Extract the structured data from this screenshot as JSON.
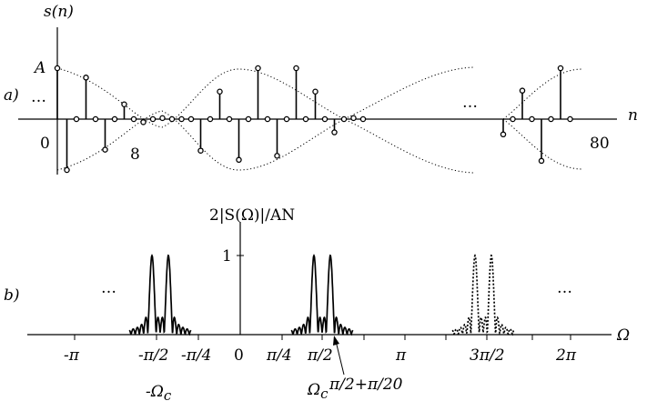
{
  "panel_a": {
    "label": "a)",
    "y_title": "s(n)",
    "amplitude_label": "A",
    "left_dots": "…",
    "right_dots": "…",
    "x_axis_label": "n",
    "tick_labels": {
      "zero": "0",
      "eight": "8",
      "eighty": "80"
    },
    "samples": [
      {
        "n": 0,
        "v": 1.0
      },
      {
        "n": 1,
        "v": -1.0
      },
      {
        "n": 2,
        "v": 0.0
      },
      {
        "n": 3,
        "v": 0.816
      },
      {
        "n": 4,
        "v": 0.0
      },
      {
        "n": 5,
        "v": -0.6
      },
      {
        "n": 6,
        "v": 0.0
      },
      {
        "n": 7,
        "v": 0.29
      },
      {
        "n": 8,
        "v": 0.0
      },
      {
        "n": 9,
        "v": -0.06
      },
      {
        "n": 10,
        "v": 0.0
      },
      {
        "n": 11,
        "v": 0.02
      },
      {
        "n": 12,
        "v": 0.0
      },
      {
        "n": 13,
        "v": 0.0
      },
      {
        "n": 14,
        "v": 0.0
      },
      {
        "n": 15,
        "v": -0.62
      },
      {
        "n": 16,
        "v": 0.0
      },
      {
        "n": 17,
        "v": 0.54
      },
      {
        "n": 18,
        "v": 0.0
      },
      {
        "n": 19,
        "v": -0.8
      },
      {
        "n": 20,
        "v": 0.0
      },
      {
        "n": 21,
        "v": 1.0
      },
      {
        "n": 22,
        "v": 0.0
      },
      {
        "n": 23,
        "v": -0.72
      },
      {
        "n": 24,
        "v": 0.0
      },
      {
        "n": 25,
        "v": 1.0
      },
      {
        "n": 26,
        "v": 0.0
      },
      {
        "n": 27,
        "v": 0.54
      },
      {
        "n": 28,
        "v": 0.0
      },
      {
        "n": 29,
        "v": -0.26
      },
      {
        "n": 30,
        "v": 0.0
      },
      {
        "n": 31,
        "v": 0.02
      },
      {
        "n": 32,
        "v": 0.0
      },
      {
        "n": 70,
        "v": -0.3
      },
      {
        "n": 71,
        "v": 0.0
      },
      {
        "n": 72,
        "v": 0.56
      },
      {
        "n": 73,
        "v": 0.0
      },
      {
        "n": 74,
        "v": -0.82
      },
      {
        "n": 75,
        "v": 0.0
      },
      {
        "n": 76,
        "v": 1.0
      },
      {
        "n": 77,
        "v": 0.0
      }
    ]
  },
  "panel_b": {
    "label": "b)",
    "y_title": "2|S(Ω)|/AN",
    "y_tick_one": "1",
    "x_axis_label": "Ω",
    "left_dots": "…",
    "right_dots": "…",
    "x_ticks": [
      "-π",
      "-π/2",
      "-π/4",
      "0",
      "π/4",
      "π/2",
      "π",
      "3π/2",
      "2π"
    ],
    "neg_cutoff_label": "-Ω",
    "neg_cutoff_sub": "c",
    "cutoff_label": "Ω",
    "cutoff_sub": "c",
    "annot_label": "π/2+π/20"
  }
}
